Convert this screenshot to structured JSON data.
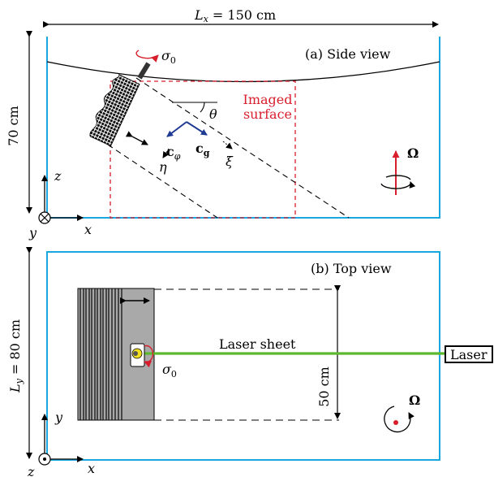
{
  "side_view": {
    "title": "(a) Side view",
    "dimension_width": "L",
    "dimension_width_sub": "x",
    "dimension_width_value": " = 150 cm",
    "dimension_height": "70 cm",
    "theta": "θ",
    "imaged_surface_line1": "Imaged",
    "imaged_surface_line2": "surface",
    "c_phi_base": "c",
    "c_phi_sub": "φ",
    "c_g_base": "c",
    "c_g_sub": "g",
    "eta": "η",
    "xi": "ξ",
    "sigma": "σ",
    "sigma_sub": "0",
    "omega": "Ω",
    "axis_z": "z",
    "axis_y": "y",
    "axis_x": "x"
  },
  "top_view": {
    "title": "(b) Top view",
    "dimension_height": "L",
    "dimension_height_sub": "y",
    "dimension_height_value": " = 80 cm",
    "laser_sheet": "Laser sheet",
    "laser_box": "Laser",
    "width_50": "50 cm",
    "sigma": "σ",
    "sigma_sub": "0",
    "omega": "Ω",
    "axis_y": "y",
    "axis_z": "z",
    "axis_x": "x"
  },
  "colors": {
    "tank": "#1aa7e0",
    "imaged_region": "#d81e2c",
    "rotation": "#d81e2c",
    "vector": "#1f3a93",
    "laser": "#5cb82e",
    "wavemaker": "#a9a9a9"
  }
}
